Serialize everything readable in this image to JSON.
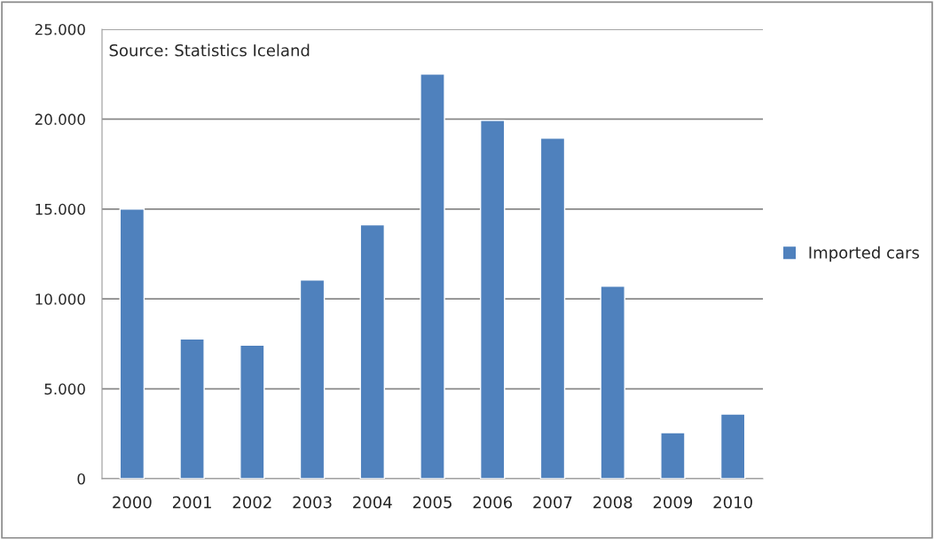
{
  "chart_data": {
    "type": "bar",
    "categories": [
      "2000",
      "2001",
      "2002",
      "2003",
      "2004",
      "2005",
      "2006",
      "2007",
      "2008",
      "2009",
      "2010"
    ],
    "series": [
      {
        "name": "Imported cars",
        "color": "#4f81bd",
        "values": [
          15000,
          7770,
          7430,
          11050,
          14120,
          22510,
          19930,
          18940,
          10710,
          2560,
          3600
        ]
      }
    ],
    "ylim": [
      0,
      25000
    ],
    "yticks": [
      {
        "value": 0,
        "label": "0"
      },
      {
        "value": 5000,
        "label": "5.000"
      },
      {
        "value": 10000,
        "label": "10.000"
      },
      {
        "value": 15000,
        "label": "15.000"
      },
      {
        "value": 20000,
        "label": "20.000"
      },
      {
        "value": 25000,
        "label": "25.000"
      }
    ],
    "grid": "y",
    "legend": "right",
    "annotations": [
      "Source: Statistics Iceland"
    ]
  }
}
